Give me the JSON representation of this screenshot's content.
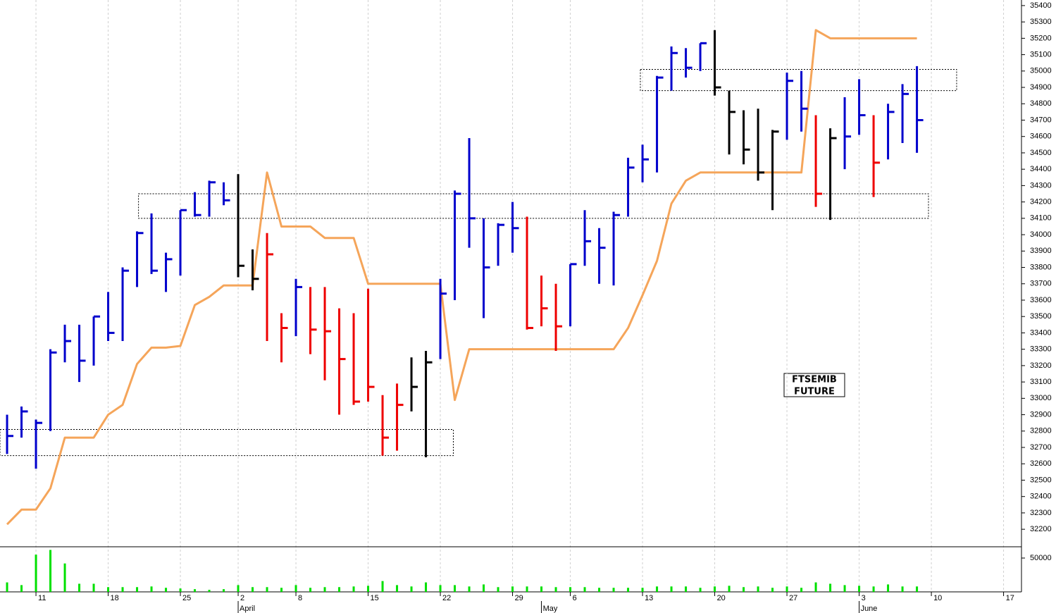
{
  "chart_data": {
    "type": "hlc",
    "annotation": [
      "FTSEMIB",
      "FUTURE"
    ],
    "xlim": [
      -0.49,
      70.24
    ],
    "xticks": [
      {
        "value": 2,
        "label": "11"
      },
      {
        "value": 7,
        "label": "18"
      },
      {
        "value": 12,
        "label": "25"
      },
      {
        "value": 16,
        "label": "2"
      },
      {
        "value": 20,
        "label": "8"
      },
      {
        "value": 25,
        "label": "15"
      },
      {
        "value": 30,
        "label": "22"
      },
      {
        "value": 35,
        "label": "29"
      },
      {
        "value": 39,
        "label": "6"
      },
      {
        "value": 44,
        "label": "13"
      },
      {
        "value": 49,
        "label": "20"
      },
      {
        "value": 54,
        "label": "27"
      },
      {
        "value": 59,
        "label": "3"
      },
      {
        "value": 64,
        "label": "10"
      },
      {
        "value": 69,
        "label": "17"
      }
    ],
    "month_ticks": [
      {
        "value": 16,
        "label": "April"
      },
      {
        "value": 37,
        "label": "May"
      },
      {
        "value": 59,
        "label": "June"
      }
    ],
    "grid": true,
    "ylim": [
      32093,
      35434
    ],
    "yticks": [
      35400,
      35300,
      35200,
      35100,
      35000,
      34900,
      34800,
      34700,
      34600,
      34500,
      34400,
      34300,
      34200,
      34100,
      34000,
      33900,
      33800,
      33700,
      33600,
      33500,
      33400,
      33300,
      33200,
      33100,
      33000,
      32900,
      32800,
      32700,
      32600,
      32500,
      32400,
      32300,
      32200
    ],
    "high": [
      32900,
      32950,
      32870,
      33300,
      33450,
      33450,
      33500,
      33650,
      33800,
      34020,
      34130,
      33890,
      34150,
      34260,
      34330,
      34320,
      34370,
      33910,
      34010,
      33520,
      33730,
      33680,
      33680,
      33550,
      33520,
      33670,
      33020,
      33090,
      33250,
      33290,
      33730,
      34270,
      34590,
      34100,
      34070,
      34200,
      34110,
      33750,
      33700,
      33820,
      34150,
      34040,
      34140,
      34470,
      34550,
      34970,
      35150,
      35140,
      35170,
      35250,
      34880,
      34760,
      34770,
      34640,
      34990,
      35000,
      34730,
      34650,
      34840,
      34950,
      34730,
      34800,
      34920,
      35030
    ],
    "low": [
      32660,
      32760,
      32570,
      32800,
      33220,
      33100,
      33200,
      33350,
      33350,
      33680,
      33760,
      33650,
      33750,
      34110,
      34110,
      34180,
      33740,
      33660,
      33350,
      33220,
      33380,
      33270,
      33110,
      32900,
      32960,
      32980,
      32650,
      32680,
      32920,
      32640,
      33240,
      33600,
      33920,
      33490,
      33810,
      33890,
      33420,
      33440,
      33290,
      33440,
      33810,
      33700,
      33690,
      34110,
      34320,
      34380,
      34880,
      34960,
      35000,
      34850,
      34490,
      34430,
      34330,
      34150,
      34580,
      34630,
      34170,
      34090,
      34400,
      34610,
      34230,
      34460,
      34560,
      34500
    ],
    "close": [
      32770,
      32920,
      32850,
      33280,
      33350,
      33230,
      33500,
      33400,
      33780,
      34010,
      33780,
      33850,
      34150,
      34120,
      34320,
      34210,
      33810,
      33730,
      33880,
      33430,
      33680,
      33420,
      33410,
      33240,
      32980,
      33070,
      32760,
      32960,
      33070,
      33220,
      33640,
      34250,
      34100,
      33800,
      34060,
      34040,
      33430,
      33550,
      33440,
      33820,
      33960,
      33920,
      34120,
      34410,
      34460,
      34960,
      35110,
      35020,
      35170,
      34900,
      34750,
      34520,
      34380,
      34630,
      34940,
      34770,
      34250,
      34590,
      34600,
      34730,
      34440,
      34750,
      34860,
      34700
    ],
    "bar_colors": [
      "#0000cc",
      "#0000cc",
      "#0000cc",
      "#0000cc",
      "#0000cc",
      "#0000cc",
      "#0000cc",
      "#0000cc",
      "#0000cc",
      "#0000cc",
      "#0000cc",
      "#0000cc",
      "#0000cc",
      "#0000cc",
      "#0000cc",
      "#0000cc",
      "#000000",
      "#000000",
      "#ee0000",
      "#ee0000",
      "#0000cc",
      "#ee0000",
      "#ee0000",
      "#ee0000",
      "#ee0000",
      "#ee0000",
      "#ee0000",
      "#ee0000",
      "#000000",
      "#000000",
      "#0000cc",
      "#0000cc",
      "#0000cc",
      "#0000cc",
      "#0000cc",
      "#0000cc",
      "#ee0000",
      "#ee0000",
      "#ee0000",
      "#0000cc",
      "#0000cc",
      "#0000cc",
      "#0000cc",
      "#0000cc",
      "#0000cc",
      "#0000cc",
      "#0000cc",
      "#0000cc",
      "#0000cc",
      "#000000",
      "#000000",
      "#000000",
      "#000000",
      "#000000",
      "#0000cc",
      "#0000cc",
      "#ee0000",
      "#000000",
      "#0000cc",
      "#0000cc",
      "#ee0000",
      "#0000cc",
      "#0000cc",
      "#0000cc"
    ],
    "line": {
      "color": "#f5a55a",
      "values": [
        32230,
        32320,
        32320,
        32450,
        32760,
        32760,
        32760,
        32900,
        32960,
        33210,
        33310,
        33310,
        33320,
        33570,
        33620,
        33690,
        33690,
        33690,
        34380,
        34050,
        34050,
        34050,
        33980,
        33980,
        33980,
        33700,
        33700,
        33700,
        33700,
        33700,
        33700,
        32990,
        33300,
        33300,
        33300,
        33300,
        33300,
        33300,
        33300,
        33300,
        33300,
        33300,
        33300,
        33430,
        33630,
        33840,
        34190,
        34330,
        34380,
        34380,
        34380,
        34380,
        34380,
        34380,
        34380,
        34380,
        35250,
        35200,
        35200,
        35200,
        35200,
        35200,
        35200,
        35200
      ]
    },
    "zones": [
      {
        "x": [
          9.1,
          63.8
        ],
        "y": [
          34100,
          34250
        ]
      },
      {
        "x": [
          -0.49,
          30.9
        ],
        "y": [
          32650,
          32810
        ]
      },
      {
        "x": [
          43.85,
          65.75
        ],
        "y": [
          34880,
          35010
        ]
      }
    ],
    "volume": {
      "color": "#00e000",
      "ylim": [
        0,
        66667
      ],
      "yticks": [
        50000
      ],
      "values": [
        14000,
        10000,
        55000,
        62000,
        42000,
        12000,
        12000,
        7000,
        7000,
        7000,
        8000,
        6000,
        5000,
        4000,
        3000,
        4000,
        10000,
        7000,
        7000,
        6000,
        10000,
        6000,
        7000,
        7000,
        8000,
        9000,
        16000,
        10000,
        8000,
        14000,
        10000,
        10000,
        8000,
        11000,
        7000,
        8000,
        8000,
        8000,
        7000,
        7000,
        7000,
        6000,
        6000,
        6000,
        6000,
        8000,
        8000,
        8000,
        6000,
        8000,
        9000,
        7000,
        8000,
        6000,
        8000,
        6000,
        14000,
        12000,
        10000,
        9000,
        8000,
        11000,
        8000,
        8000
      ]
    }
  }
}
